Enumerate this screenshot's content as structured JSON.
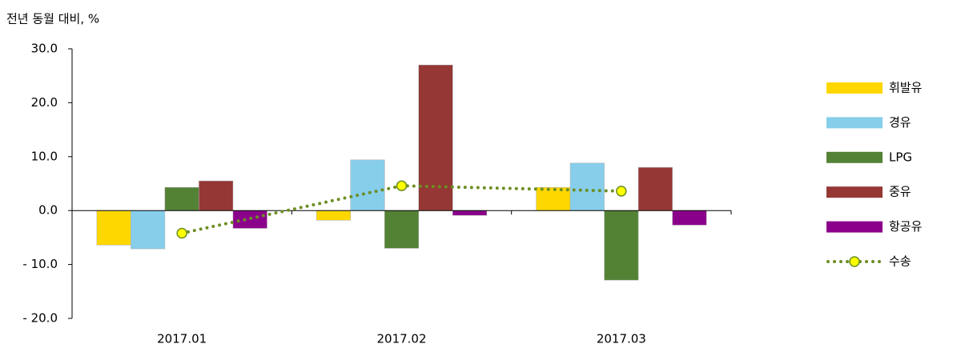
{
  "chart_data": {
    "type": "bar",
    "title": "전년 동월 대비, %",
    "categories": [
      "2017.01",
      "2017.02",
      "2017.03"
    ],
    "series": [
      {
        "name": "휘발유",
        "color": "#ffd700",
        "values": [
          -6.4,
          -1.8,
          4.3
        ]
      },
      {
        "name": "경유",
        "color": "#87ceeb",
        "values": [
          -7.1,
          9.4,
          8.8
        ]
      },
      {
        "name": "LPG",
        "color": "#548235",
        "values": [
          4.3,
          -7.0,
          -12.9
        ]
      },
      {
        "name": "중유",
        "color": "#953735",
        "values": [
          5.5,
          27.0,
          8.0
        ]
      },
      {
        "name": "항공유",
        "color": "#8b008b",
        "values": [
          -3.3,
          -0.9,
          -2.7
        ]
      },
      {
        "name": "수송",
        "type": "line",
        "color": "#6b8e23",
        "marker_color": "#ffff00",
        "values": [
          -4.2,
          4.6,
          3.6
        ]
      }
    ],
    "ylim": [
      -20,
      30
    ],
    "yticks": [
      {
        "value": 30,
        "label": "30.0"
      },
      {
        "value": 20,
        "label": "20.0"
      },
      {
        "value": 10,
        "label": "10.0"
      },
      {
        "value": 0,
        "label": "0.0"
      },
      {
        "value": -10,
        "label": "- 10.0"
      },
      {
        "value": -20,
        "label": "- 20.0"
      }
    ],
    "legend": "right"
  }
}
